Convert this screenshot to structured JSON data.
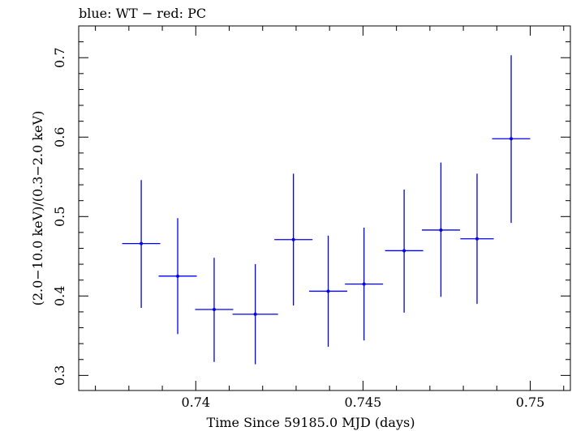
{
  "chart_data": {
    "type": "scatter",
    "title": "blue: WT − red: PC",
    "xlabel": "Time Since 59185.0 MJD (days)",
    "ylabel": "(2.0−10.0 keV)/(0.3−2.0 keV)",
    "xlim": [
      0.7365,
      0.7512
    ],
    "ylim": [
      0.281,
      0.74
    ],
    "x_ticks": [
      {
        "value": 0.74,
        "label": "0.74"
      },
      {
        "value": 0.745,
        "label": "0.745"
      },
      {
        "value": 0.75,
        "label": "0.75"
      }
    ],
    "y_ticks": [
      {
        "value": 0.3,
        "label": "0.3"
      },
      {
        "value": 0.4,
        "label": "0.4"
      },
      {
        "value": 0.5,
        "label": "0.5"
      },
      {
        "value": 0.6,
        "label": "0.6"
      },
      {
        "value": 0.7,
        "label": "0.7"
      }
    ],
    "series": [
      {
        "color": "#0000ee",
        "points": [
          {
            "x": 0.73837,
            "xerr": 0.00057,
            "y": 0.466,
            "yerr_low": 0.081,
            "yerr_high": 0.08
          },
          {
            "x": 0.73946,
            "xerr": 0.00057,
            "y": 0.425,
            "yerr_low": 0.073,
            "yerr_high": 0.073
          },
          {
            "x": 0.74055,
            "xerr": 0.00057,
            "y": 0.383,
            "yerr_low": 0.066,
            "yerr_high": 0.065
          },
          {
            "x": 0.74178,
            "xerr": 0.00068,
            "y": 0.377,
            "yerr_low": 0.063,
            "yerr_high": 0.063
          },
          {
            "x": 0.74292,
            "xerr": 0.00057,
            "y": 0.471,
            "yerr_low": 0.083,
            "yerr_high": 0.083
          },
          {
            "x": 0.74396,
            "xerr": 0.00057,
            "y": 0.406,
            "yerr_low": 0.07,
            "yerr_high": 0.07
          },
          {
            "x": 0.74503,
            "xerr": 0.00057,
            "y": 0.415,
            "yerr_low": 0.071,
            "yerr_high": 0.071
          },
          {
            "x": 0.74623,
            "xerr": 0.00057,
            "y": 0.457,
            "yerr_low": 0.078,
            "yerr_high": 0.077
          },
          {
            "x": 0.74733,
            "xerr": 0.00057,
            "y": 0.483,
            "yerr_low": 0.084,
            "yerr_high": 0.085
          },
          {
            "x": 0.74841,
            "xerr": 0.0005,
            "y": 0.472,
            "yerr_low": 0.082,
            "yerr_high": 0.082
          },
          {
            "x": 0.74943,
            "xerr": 0.00057,
            "y": 0.598,
            "yerr_low": 0.106,
            "yerr_high": 0.105
          }
        ]
      }
    ],
    "grid": false,
    "legend": "none"
  }
}
